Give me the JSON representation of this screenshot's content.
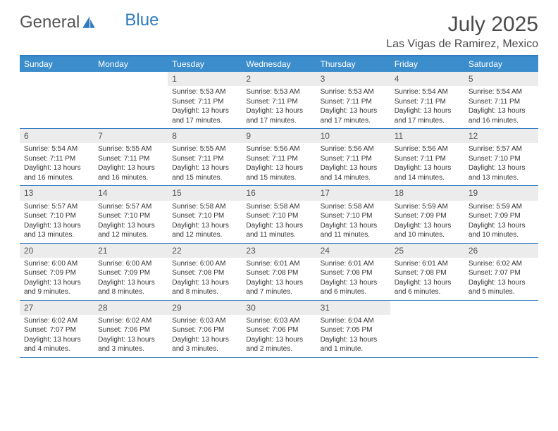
{
  "logo": {
    "text1": "General",
    "text2": "Blue"
  },
  "title": "July 2025",
  "location": "Las Vigas de Ramirez, Mexico",
  "weekdays": [
    "Sunday",
    "Monday",
    "Tuesday",
    "Wednesday",
    "Thursday",
    "Friday",
    "Saturday"
  ],
  "colors": {
    "header_bg": "#3c8dcc",
    "border": "#2f7bbf",
    "daynum_bg": "#ececec",
    "text": "#333333"
  },
  "weeks": [
    [
      null,
      null,
      {
        "n": "1",
        "sr": "5:53 AM",
        "ss": "7:11 PM",
        "dl": "13 hours and 17 minutes."
      },
      {
        "n": "2",
        "sr": "5:53 AM",
        "ss": "7:11 PM",
        "dl": "13 hours and 17 minutes."
      },
      {
        "n": "3",
        "sr": "5:53 AM",
        "ss": "7:11 PM",
        "dl": "13 hours and 17 minutes."
      },
      {
        "n": "4",
        "sr": "5:54 AM",
        "ss": "7:11 PM",
        "dl": "13 hours and 17 minutes."
      },
      {
        "n": "5",
        "sr": "5:54 AM",
        "ss": "7:11 PM",
        "dl": "13 hours and 16 minutes."
      }
    ],
    [
      {
        "n": "6",
        "sr": "5:54 AM",
        "ss": "7:11 PM",
        "dl": "13 hours and 16 minutes."
      },
      {
        "n": "7",
        "sr": "5:55 AM",
        "ss": "7:11 PM",
        "dl": "13 hours and 16 minutes."
      },
      {
        "n": "8",
        "sr": "5:55 AM",
        "ss": "7:11 PM",
        "dl": "13 hours and 15 minutes."
      },
      {
        "n": "9",
        "sr": "5:56 AM",
        "ss": "7:11 PM",
        "dl": "13 hours and 15 minutes."
      },
      {
        "n": "10",
        "sr": "5:56 AM",
        "ss": "7:11 PM",
        "dl": "13 hours and 14 minutes."
      },
      {
        "n": "11",
        "sr": "5:56 AM",
        "ss": "7:11 PM",
        "dl": "13 hours and 14 minutes."
      },
      {
        "n": "12",
        "sr": "5:57 AM",
        "ss": "7:10 PM",
        "dl": "13 hours and 13 minutes."
      }
    ],
    [
      {
        "n": "13",
        "sr": "5:57 AM",
        "ss": "7:10 PM",
        "dl": "13 hours and 13 minutes."
      },
      {
        "n": "14",
        "sr": "5:57 AM",
        "ss": "7:10 PM",
        "dl": "13 hours and 12 minutes."
      },
      {
        "n": "15",
        "sr": "5:58 AM",
        "ss": "7:10 PM",
        "dl": "13 hours and 12 minutes."
      },
      {
        "n": "16",
        "sr": "5:58 AM",
        "ss": "7:10 PM",
        "dl": "13 hours and 11 minutes."
      },
      {
        "n": "17",
        "sr": "5:58 AM",
        "ss": "7:10 PM",
        "dl": "13 hours and 11 minutes."
      },
      {
        "n": "18",
        "sr": "5:59 AM",
        "ss": "7:09 PM",
        "dl": "13 hours and 10 minutes."
      },
      {
        "n": "19",
        "sr": "5:59 AM",
        "ss": "7:09 PM",
        "dl": "13 hours and 10 minutes."
      }
    ],
    [
      {
        "n": "20",
        "sr": "6:00 AM",
        "ss": "7:09 PM",
        "dl": "13 hours and 9 minutes."
      },
      {
        "n": "21",
        "sr": "6:00 AM",
        "ss": "7:09 PM",
        "dl": "13 hours and 8 minutes."
      },
      {
        "n": "22",
        "sr": "6:00 AM",
        "ss": "7:08 PM",
        "dl": "13 hours and 8 minutes."
      },
      {
        "n": "23",
        "sr": "6:01 AM",
        "ss": "7:08 PM",
        "dl": "13 hours and 7 minutes."
      },
      {
        "n": "24",
        "sr": "6:01 AM",
        "ss": "7:08 PM",
        "dl": "13 hours and 6 minutes."
      },
      {
        "n": "25",
        "sr": "6:01 AM",
        "ss": "7:08 PM",
        "dl": "13 hours and 6 minutes."
      },
      {
        "n": "26",
        "sr": "6:02 AM",
        "ss": "7:07 PM",
        "dl": "13 hours and 5 minutes."
      }
    ],
    [
      {
        "n": "27",
        "sr": "6:02 AM",
        "ss": "7:07 PM",
        "dl": "13 hours and 4 minutes."
      },
      {
        "n": "28",
        "sr": "6:02 AM",
        "ss": "7:06 PM",
        "dl": "13 hours and 3 minutes."
      },
      {
        "n": "29",
        "sr": "6:03 AM",
        "ss": "7:06 PM",
        "dl": "13 hours and 3 minutes."
      },
      {
        "n": "30",
        "sr": "6:03 AM",
        "ss": "7:06 PM",
        "dl": "13 hours and 2 minutes."
      },
      {
        "n": "31",
        "sr": "6:04 AM",
        "ss": "7:05 PM",
        "dl": "13 hours and 1 minute."
      },
      null,
      null
    ]
  ],
  "labels": {
    "sunrise": "Sunrise:",
    "sunset": "Sunset:",
    "daylight": "Daylight:"
  }
}
